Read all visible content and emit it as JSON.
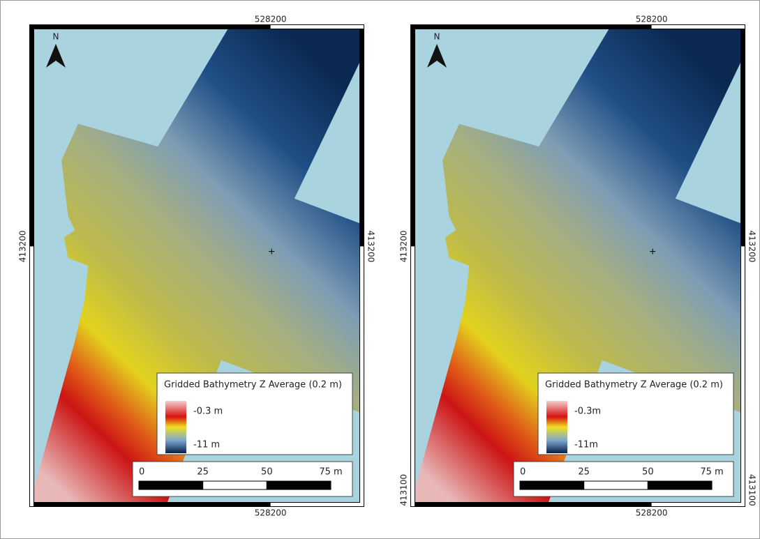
{
  "panels": [
    {
      "north": "N",
      "top_label": "528200",
      "bottom_label": "528200",
      "left_labels": [
        "413200"
      ],
      "right_labels": [
        "413200"
      ],
      "legend": {
        "title": "Gridded Bathymetry Z Average (0.2 m)",
        "max_label": "-0.3 m",
        "min_label": "-11 m"
      },
      "scale_labels": [
        "0",
        "25",
        "50",
        "75 m"
      ]
    },
    {
      "north": "N",
      "top_label": "528200",
      "bottom_label": "528200",
      "left_labels": [
        "413200",
        "413100"
      ],
      "right_labels": [
        "413200",
        "413100"
      ],
      "legend": {
        "title": "Gridded Bathymetry Z Average (0.2 m)",
        "max_label": "-0.3m",
        "min_label": "-11m"
      },
      "scale_labels": [
        "0",
        "25",
        "50",
        "75 m"
      ]
    }
  ]
}
